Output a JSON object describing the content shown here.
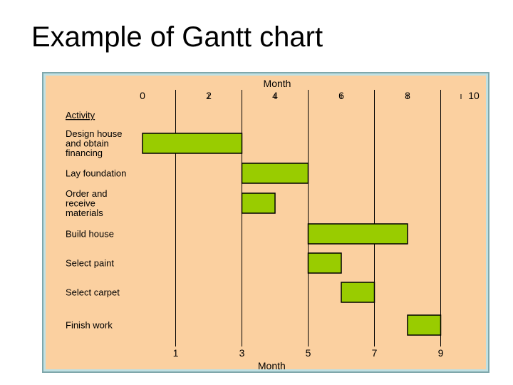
{
  "slide": {
    "title": "Example of Gantt chart"
  },
  "colors": {
    "panel_border": "#bfe0e3",
    "plot_background": "#fbd0a0",
    "bar_fill": "#99cc00",
    "bar_stroke": "#000000",
    "gridline": "#000000"
  },
  "chart_data": {
    "type": "gantt",
    "title": "",
    "category_header": "Activity",
    "top_axis": {
      "label": "Month",
      "ticks": [
        0,
        2,
        4,
        6,
        8,
        10
      ],
      "range": [
        0,
        10
      ]
    },
    "bottom_axis": {
      "label": "Month",
      "ticks": [
        1,
        3,
        5,
        7,
        9
      ]
    },
    "grid": true,
    "tasks": [
      {
        "name": "Design house and obtain financing",
        "lines": [
          "Design house",
          "and obtain",
          "financing"
        ],
        "start": 0,
        "end": 3
      },
      {
        "name": "Lay foundation",
        "lines": [
          "Lay foundation"
        ],
        "start": 3,
        "end": 5
      },
      {
        "name": "Order and receive materials",
        "lines": [
          "Order and",
          "receive",
          "materials"
        ],
        "start": 3,
        "end": 4
      },
      {
        "name": "Build house",
        "lines": [
          "Build house"
        ],
        "start": 5,
        "end": 8
      },
      {
        "name": "Select paint",
        "lines": [
          "Select paint"
        ],
        "start": 5,
        "end": 6
      },
      {
        "name": "Select carpet",
        "lines": [
          "Select carpet"
        ],
        "start": 6,
        "end": 7
      },
      {
        "name": "Finish work",
        "lines": [
          "Finish work"
        ],
        "start": 8,
        "end": 9
      }
    ]
  }
}
